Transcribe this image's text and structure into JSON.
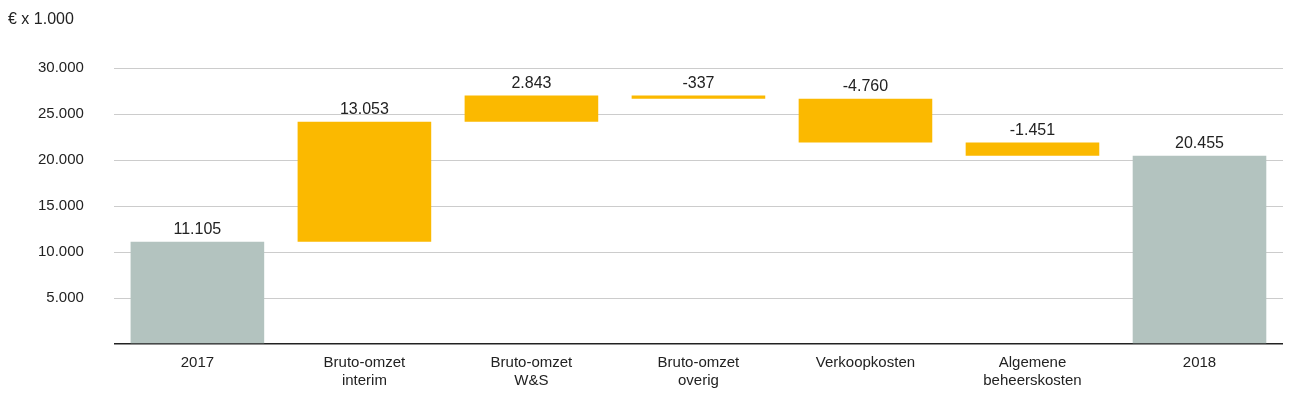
{
  "chart_data": {
    "type": "bar",
    "ylabel": "€ x 1.000",
    "categories": [
      "2017",
      "Bruto-omzet interim",
      "Bruto-omzet W&S",
      "Bruto-omzet overig",
      "Verkoopkosten",
      "Algemene beheerskosten",
      "2018"
    ],
    "values": [
      11105,
      13053,
      2843,
      -337,
      -4760,
      -1451,
      20455
    ],
    "base": [
      0,
      11105,
      24158,
      27001,
      26664,
      21904,
      0
    ],
    "colors": [
      "#b3c3bf",
      "#fbb900",
      "#fbb900",
      "#fbb900",
      "#fbb900",
      "#fbb900",
      "#b3c3bf"
    ],
    "value_labels": [
      "11.105",
      "13.053",
      "2.843",
      "-337",
      "-4.760",
      "-1.451",
      "20.455"
    ],
    "ylim": [
      0,
      30000
    ],
    "yticks": [
      {
        "value": 0,
        "label": null
      },
      {
        "value": 5000,
        "label": "5.000"
      },
      {
        "value": 10000,
        "label": "10.000"
      },
      {
        "value": 15000,
        "label": "15.000"
      },
      {
        "value": 20000,
        "label": "20.000"
      },
      {
        "value": 25000,
        "label": "25.000"
      },
      {
        "value": 30000,
        "label": "30.000"
      }
    ],
    "grid": "y",
    "legend": false
  }
}
